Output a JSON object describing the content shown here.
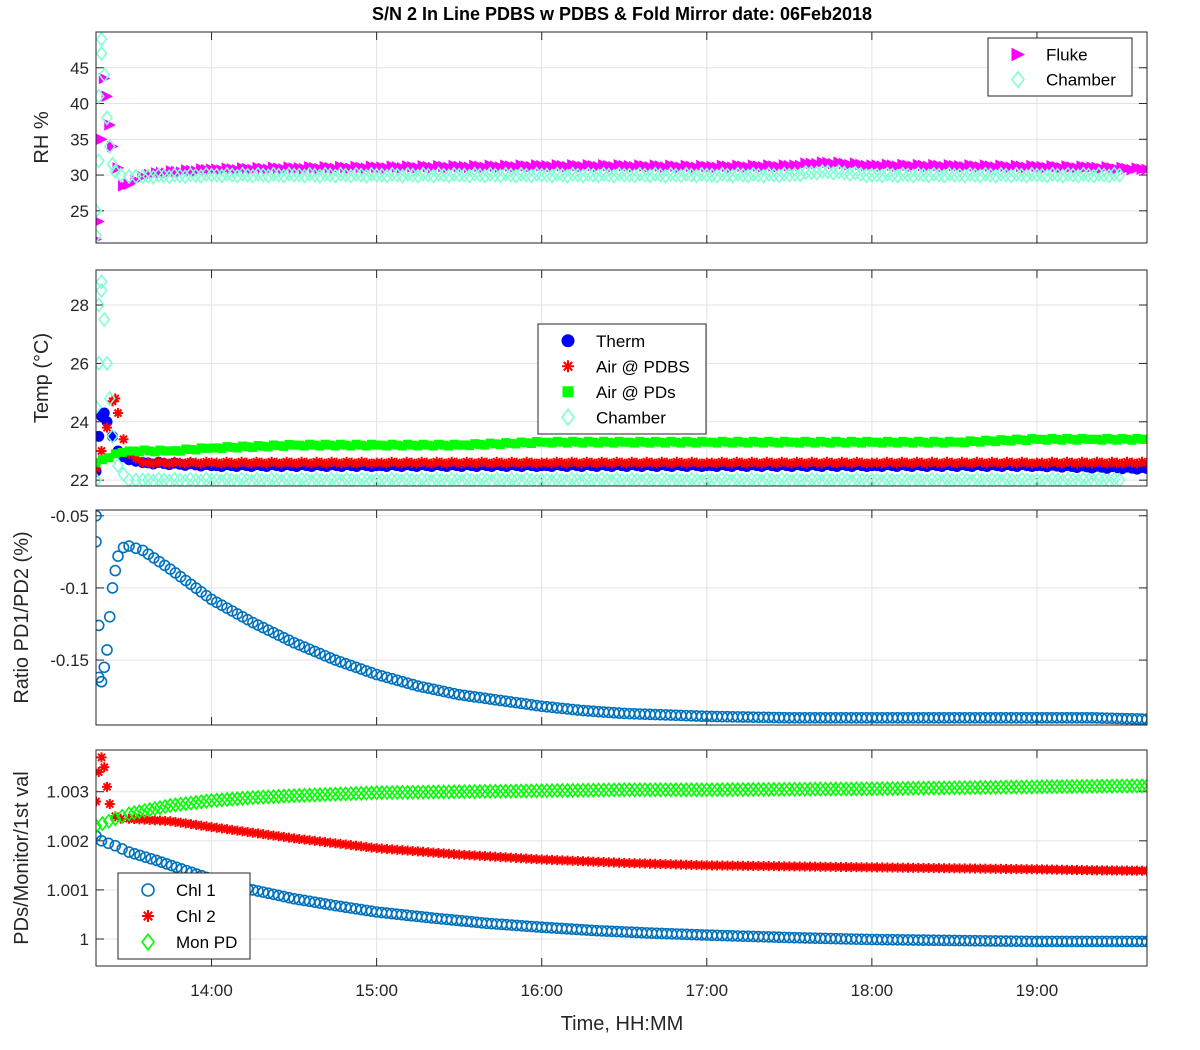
{
  "figure_title": "S/N 2 In Line PDBS w PDBS & Fold Mirror date: 06Feb2018",
  "xlabel": "Time, HH:MM",
  "chart_data": [
    {
      "type": "scatter",
      "id": "rh",
      "title": "S/N 2 In Line PDBS w PDBS & Fold Mirror date: 06Feb2018",
      "xlabel": "",
      "ylabel": "RH %",
      "xlim": [
        "13:18",
        "19:40"
      ],
      "ylim": [
        20.5,
        50
      ],
      "yticks": [
        25,
        30,
        35,
        40,
        45
      ],
      "ytick_labels": [
        "25",
        "30",
        "35",
        "40",
        "45"
      ],
      "grid": true,
      "legend_position": "top-right",
      "series": [
        {
          "name": "Fluke",
          "marker": "triangle-right",
          "color": "#ff00ff",
          "x": [
            "13:18",
            "13:19",
            "13:20",
            "13:21",
            "13:22",
            "13:23",
            "13:24",
            "13:26",
            "13:28",
            "13:30",
            "13:35",
            "13:40",
            "14:00",
            "14:30",
            "15:00",
            "15:30",
            "16:00",
            "16:30",
            "17:00",
            "17:30",
            "17:42",
            "18:00",
            "18:30",
            "19:00",
            "19:20",
            "19:40"
          ],
          "y": [
            21,
            23.5,
            35,
            43.5,
            41,
            37,
            34,
            31,
            28.5,
            28.7,
            29.8,
            30.3,
            30.8,
            31,
            31.1,
            31.2,
            31.3,
            31.3,
            31.2,
            31.3,
            31.8,
            31.4,
            31.3,
            31.2,
            31.1,
            30.8
          ]
        },
        {
          "name": "Chamber",
          "marker": "diamond",
          "color": "#7fffd4",
          "x": [
            "13:18",
            "13:18",
            "13:19",
            "13:19",
            "13:20",
            "13:20",
            "13:21",
            "13:22",
            "13:23",
            "13:24",
            "13:25",
            "13:27",
            "13:30",
            "13:35",
            "14:00",
            "14:30",
            "15:00",
            "15:30",
            "16:00",
            "16:30",
            "17:00",
            "17:30",
            "17:42",
            "18:00",
            "18:30",
            "19:00",
            "19:30"
          ],
          "y": [
            21.5,
            25,
            32,
            41,
            49,
            47,
            44,
            38,
            34,
            31.5,
            30.5,
            30,
            29.8,
            29.8,
            30,
            30,
            30,
            30,
            30,
            30,
            30,
            30,
            30.5,
            30,
            30,
            30,
            30
          ]
        }
      ]
    },
    {
      "type": "scatter",
      "id": "temp",
      "xlabel": "",
      "ylabel": "Temp (°C)",
      "xlim": [
        "13:18",
        "19:40"
      ],
      "ylim": [
        21.8,
        29.2
      ],
      "yticks": [
        22,
        24,
        26,
        28
      ],
      "ytick_labels": [
        "22",
        "24",
        "26",
        "28"
      ],
      "grid": true,
      "legend_position": "center",
      "series": [
        {
          "name": "Therm",
          "marker": "circle",
          "color": "#0000ff",
          "x": [
            "13:18",
            "13:19",
            "13:20",
            "13:21",
            "13:22",
            "13:24",
            "13:26",
            "13:28",
            "13:30",
            "13:35",
            "14:00",
            "15:00",
            "16:00",
            "17:00",
            "18:00",
            "19:00",
            "19:40"
          ],
          "y": [
            22.3,
            23.5,
            24.2,
            24.3,
            24,
            23.5,
            23,
            22.8,
            22.7,
            22.6,
            22.5,
            22.5,
            22.5,
            22.5,
            22.5,
            22.5,
            22.4
          ]
        },
        {
          "name": "Air @ PDBS",
          "marker": "asterisk",
          "color": "#ff0000",
          "x": [
            "13:18",
            "13:20",
            "13:22",
            "13:24",
            "13:25",
            "13:26",
            "13:28",
            "13:30",
            "13:35",
            "14:00",
            "15:00",
            "16:00",
            "17:00",
            "18:00",
            "19:00",
            "19:40"
          ],
          "y": [
            22.4,
            23,
            23.8,
            24.7,
            24.8,
            24.3,
            23.4,
            22.9,
            22.6,
            22.6,
            22.6,
            22.6,
            22.6,
            22.6,
            22.6,
            22.6
          ]
        },
        {
          "name": "Air @ PDs",
          "marker": "square",
          "color": "#00ff00",
          "x": [
            "13:18",
            "13:25",
            "13:30",
            "13:45",
            "14:00",
            "14:30",
            "15:00",
            "15:30",
            "16:00",
            "16:30",
            "17:00",
            "17:30",
            "18:00",
            "18:30",
            "19:00",
            "19:20",
            "19:40"
          ],
          "y": [
            22.6,
            22.9,
            23,
            23,
            23.1,
            23.2,
            23.2,
            23.2,
            23.3,
            23.3,
            23.3,
            23.3,
            23.3,
            23.3,
            23.4,
            23.4,
            23.4
          ]
        },
        {
          "name": "Chamber",
          "marker": "diamond",
          "color": "#7fffd4",
          "x": [
            "13:18",
            "13:18",
            "13:19",
            "13:19",
            "13:20",
            "13:20",
            "13:21",
            "13:22",
            "13:23",
            "13:24",
            "13:26",
            "13:28",
            "13:30",
            "13:35",
            "14:00",
            "15:00",
            "16:00",
            "17:00",
            "18:00",
            "19:00",
            "19:30"
          ],
          "y": [
            22,
            24.5,
            26,
            28,
            28.8,
            28.5,
            27.5,
            26,
            24.8,
            23.5,
            22.5,
            22.2,
            22,
            22,
            22,
            22,
            22,
            22,
            22,
            22,
            22
          ]
        }
      ]
    },
    {
      "type": "scatter",
      "id": "ratio",
      "xlabel": "",
      "ylabel": "Ratio PD1/PD2 (%)",
      "xlim": [
        "13:18",
        "19:40"
      ],
      "ylim": [
        -0.195,
        -0.046
      ],
      "yticks": [
        -0.15,
        -0.1,
        -0.05
      ],
      "ytick_labels": [
        "-0.15",
        "-0.1",
        "-0.05"
      ],
      "grid": true,
      "series": [
        {
          "name": "",
          "marker": "circle",
          "color": "#0072bd",
          "x": [
            "13:18",
            "13:18",
            "13:19",
            "13:19",
            "13:20",
            "13:21",
            "13:22",
            "13:23",
            "13:24",
            "13:25",
            "13:26",
            "13:28",
            "13:30",
            "13:35",
            "13:45",
            "14:00",
            "14:15",
            "14:30",
            "14:45",
            "15:00",
            "15:15",
            "15:30",
            "15:45",
            "16:00",
            "16:15",
            "16:30",
            "16:45",
            "17:00",
            "17:30",
            "18:00",
            "18:30",
            "19:00",
            "19:20",
            "19:40"
          ],
          "y": [
            -0.05,
            -0.068,
            -0.126,
            -0.162,
            -0.165,
            -0.155,
            -0.143,
            -0.12,
            -0.1,
            -0.088,
            -0.078,
            -0.072,
            -0.071,
            -0.074,
            -0.087,
            -0.108,
            -0.124,
            -0.138,
            -0.15,
            -0.16,
            -0.168,
            -0.174,
            -0.178,
            -0.182,
            -0.185,
            -0.187,
            -0.188,
            -0.189,
            -0.19,
            -0.19,
            -0.19,
            -0.19,
            -0.19,
            -0.191
          ]
        }
      ]
    },
    {
      "type": "scatter",
      "id": "pds",
      "xlabel": "Time, HH:MM",
      "ylabel": "PDs/Monitor/1st val",
      "xlim": [
        "13:18",
        "19:40"
      ],
      "ylim": [
        0.99945,
        1.00385
      ],
      "yticks": [
        1,
        1.001,
        1.002,
        1.003
      ],
      "ytick_labels": [
        "1",
        "1.001",
        "1.002",
        "1.003"
      ],
      "xticks": [
        "14:00",
        "15:00",
        "16:00",
        "17:00",
        "18:00",
        "19:00"
      ],
      "grid": true,
      "legend_position": "bottom-left",
      "series": [
        {
          "name": "Chl 1",
          "marker": "circle",
          "color": "#0072bd",
          "x": [
            "13:18",
            "13:20",
            "13:25",
            "13:30",
            "13:40",
            "14:00",
            "14:15",
            "14:30",
            "14:45",
            "15:00",
            "15:20",
            "15:40",
            "16:00",
            "16:20",
            "16:40",
            "17:00",
            "17:30",
            "18:00",
            "18:30",
            "19:00",
            "19:20",
            "19:40"
          ],
          "y": [
            1.0021,
            1.002,
            1.0019,
            1.00177,
            1.0016,
            1.00122,
            1.001,
            1.00082,
            1.00068,
            1.00055,
            1.00043,
            1.00032,
            1.00024,
            1.00017,
            1.00012,
            1.00008,
            1.00003,
            0.99999,
            0.99997,
            0.99995,
            0.99995,
            0.99995
          ]
        },
        {
          "name": "Chl 2",
          "marker": "asterisk",
          "color": "#ff0000",
          "x": [
            "13:18",
            "13:19",
            "13:20",
            "13:21",
            "13:22",
            "13:23",
            "13:25",
            "13:27",
            "13:30",
            "13:45",
            "14:00",
            "14:30",
            "15:00",
            "15:30",
            "16:00",
            "16:30",
            "17:00",
            "17:30",
            "18:00",
            "18:30",
            "19:00",
            "19:20",
            "19:40"
          ],
          "y": [
            1.0028,
            1.0034,
            1.0037,
            1.0035,
            1.0031,
            1.00275,
            1.0025,
            1.00245,
            1.00245,
            1.0024,
            1.00228,
            1.00205,
            1.00185,
            1.00172,
            1.00162,
            1.00155,
            1.0015,
            1.00148,
            1.00146,
            1.00144,
            1.00142,
            1.0014,
            1.00139
          ]
        },
        {
          "name": "Mon PD",
          "marker": "diamond",
          "color": "#00ff00",
          "x": [
            "13:18",
            "13:25",
            "13:30",
            "13:45",
            "14:00",
            "14:15",
            "14:30",
            "15:00",
            "15:30",
            "16:00",
            "16:30",
            "17:00",
            "17:30",
            "18:00",
            "18:30",
            "19:00",
            "19:20",
            "19:40"
          ],
          "y": [
            1.0023,
            1.00245,
            1.00255,
            1.00272,
            1.00282,
            1.00288,
            1.00292,
            1.00298,
            1.003,
            1.00302,
            1.00304,
            1.00304,
            1.00305,
            1.00306,
            1.00308,
            1.0031,
            1.00311,
            1.00312
          ]
        }
      ]
    }
  ]
}
